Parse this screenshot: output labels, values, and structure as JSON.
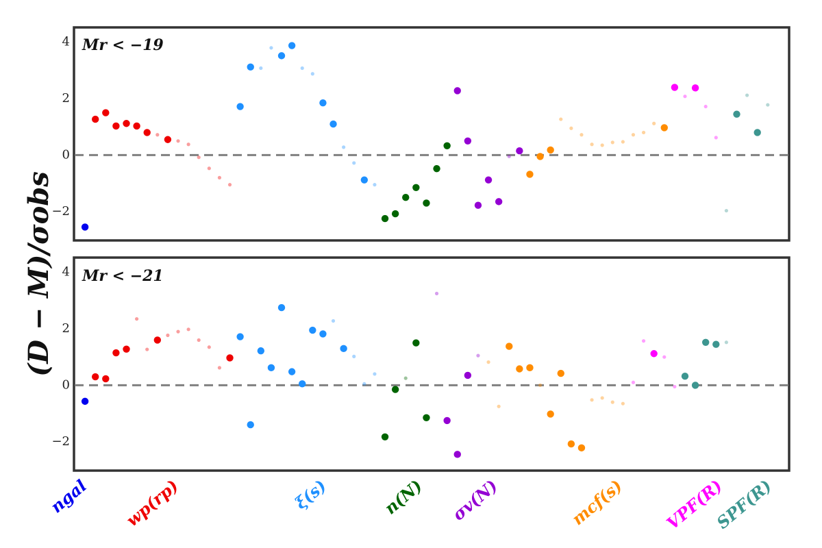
{
  "chart_data": {
    "type": "scatter",
    "ylabel": "(D − M)/σobs",
    "x_index_range": [
      -1,
      68
    ],
    "groups": [
      {
        "name": "ngal",
        "color": "#0000ee"
      },
      {
        "name": "wp(rp)",
        "color": "#ee0000"
      },
      {
        "name": "ξ(s)",
        "color": "#1e90ff"
      },
      {
        "name": "n(N)",
        "color": "#006400"
      },
      {
        "name": "σv(N)",
        "color": "#9400d3"
      },
      {
        "name": "mcf(s)",
        "color": "#ff8c00"
      },
      {
        "name": "VPF(R)",
        "color": "#ff00ff"
      },
      {
        "name": "SPF(R)",
        "color": "#3d9690"
      }
    ],
    "panels": [
      {
        "label": "Mr < −19",
        "ylim": [
          -3,
          4.5
        ],
        "yticks": [
          -2,
          0,
          2,
          4
        ],
        "points": [
          {
            "i": 0,
            "y": -2.55,
            "g": 0,
            "big": true
          },
          {
            "i": 1,
            "y": 1.27,
            "g": 1,
            "big": true
          },
          {
            "i": 2,
            "y": 1.5,
            "g": 1,
            "big": true
          },
          {
            "i": 3,
            "y": 1.03,
            "g": 1,
            "big": true
          },
          {
            "i": 4,
            "y": 1.12,
            "g": 1,
            "big": true
          },
          {
            "i": 5,
            "y": 1.03,
            "g": 1,
            "big": true
          },
          {
            "i": 6,
            "y": 0.8,
            "g": 1,
            "big": true
          },
          {
            "i": 7,
            "y": 0.72,
            "g": 1,
            "big": false
          },
          {
            "i": 8,
            "y": 0.55,
            "g": 1,
            "big": true
          },
          {
            "i": 9,
            "y": 0.5,
            "g": 1,
            "big": false
          },
          {
            "i": 10,
            "y": 0.38,
            "g": 1,
            "big": false
          },
          {
            "i": 11,
            "y": -0.08,
            "g": 1,
            "big": false
          },
          {
            "i": 12,
            "y": -0.47,
            "g": 1,
            "big": false
          },
          {
            "i": 13,
            "y": -0.8,
            "g": 1,
            "big": false
          },
          {
            "i": 14,
            "y": -1.05,
            "g": 1,
            "big": false
          },
          {
            "i": 15,
            "y": 1.72,
            "g": 2,
            "big": true
          },
          {
            "i": 16,
            "y": 3.12,
            "g": 2,
            "big": true
          },
          {
            "i": 17,
            "y": 3.08,
            "g": 2,
            "big": false
          },
          {
            "i": 18,
            "y": 3.8,
            "g": 2,
            "big": false
          },
          {
            "i": 19,
            "y": 3.52,
            "g": 2,
            "big": true
          },
          {
            "i": 20,
            "y": 3.88,
            "g": 2,
            "big": true
          },
          {
            "i": 21,
            "y": 3.08,
            "g": 2,
            "big": false
          },
          {
            "i": 22,
            "y": 2.88,
            "g": 2,
            "big": false
          },
          {
            "i": 23,
            "y": 1.85,
            "g": 2,
            "big": true
          },
          {
            "i": 24,
            "y": 1.1,
            "g": 2,
            "big": true
          },
          {
            "i": 25,
            "y": 0.28,
            "g": 2,
            "big": false
          },
          {
            "i": 26,
            "y": -0.28,
            "g": 2,
            "big": false
          },
          {
            "i": 27,
            "y": -0.88,
            "g": 2,
            "big": true
          },
          {
            "i": 28,
            "y": -1.05,
            "g": 2,
            "big": false
          },
          {
            "i": 29,
            "y": -2.25,
            "g": 3,
            "big": true
          },
          {
            "i": 30,
            "y": -2.08,
            "g": 3,
            "big": true
          },
          {
            "i": 31,
            "y": -1.5,
            "g": 3,
            "big": true
          },
          {
            "i": 32,
            "y": -1.15,
            "g": 3,
            "big": true
          },
          {
            "i": 33,
            "y": -1.7,
            "g": 3,
            "big": true
          },
          {
            "i": 34,
            "y": -0.48,
            "g": 3,
            "big": true
          },
          {
            "i": 35,
            "y": 0.33,
            "g": 3,
            "big": true
          },
          {
            "i": 36,
            "y": 2.28,
            "g": 4,
            "big": true
          },
          {
            "i": 37,
            "y": 0.5,
            "g": 4,
            "big": true
          },
          {
            "i": 38,
            "y": -1.78,
            "g": 4,
            "big": true
          },
          {
            "i": 39,
            "y": -0.88,
            "g": 4,
            "big": true
          },
          {
            "i": 40,
            "y": -1.65,
            "g": 4,
            "big": true
          },
          {
            "i": 41,
            "y": -0.05,
            "g": 4,
            "big": false
          },
          {
            "i": 42,
            "y": 0.15,
            "g": 4,
            "big": true
          },
          {
            "i": 43,
            "y": -0.68,
            "g": 5,
            "big": true
          },
          {
            "i": 44,
            "y": -0.05,
            "g": 5,
            "big": true
          },
          {
            "i": 45,
            "y": 0.18,
            "g": 5,
            "big": true
          },
          {
            "i": 46,
            "y": 1.27,
            "g": 5,
            "big": false
          },
          {
            "i": 47,
            "y": 0.95,
            "g": 5,
            "big": false
          },
          {
            "i": 48,
            "y": 0.72,
            "g": 5,
            "big": false
          },
          {
            "i": 49,
            "y": 0.38,
            "g": 5,
            "big": false
          },
          {
            "i": 50,
            "y": 0.35,
            "g": 5,
            "big": false
          },
          {
            "i": 51,
            "y": 0.45,
            "g": 5,
            "big": false
          },
          {
            "i": 52,
            "y": 0.47,
            "g": 5,
            "big": false
          },
          {
            "i": 53,
            "y": 0.72,
            "g": 5,
            "big": false
          },
          {
            "i": 54,
            "y": 0.8,
            "g": 5,
            "big": false
          },
          {
            "i": 55,
            "y": 1.12,
            "g": 5,
            "big": false
          },
          {
            "i": 56,
            "y": 0.97,
            "g": 5,
            "big": true
          },
          {
            "i": 57,
            "y": 2.4,
            "g": 6,
            "big": true
          },
          {
            "i": 58,
            "y": 2.08,
            "g": 6,
            "big": false
          },
          {
            "i": 59,
            "y": 2.38,
            "g": 6,
            "big": true
          },
          {
            "i": 60,
            "y": 1.72,
            "g": 6,
            "big": false
          },
          {
            "i": 61,
            "y": 0.62,
            "g": 6,
            "big": false
          },
          {
            "i": 62,
            "y": -1.97,
            "g": 7,
            "big": false
          },
          {
            "i": 63,
            "y": 1.45,
            "g": 7,
            "big": true
          },
          {
            "i": 64,
            "y": 2.12,
            "g": 7,
            "big": false
          },
          {
            "i": 65,
            "y": 0.8,
            "g": 7,
            "big": true
          },
          {
            "i": 66,
            "y": 1.78,
            "g": 7,
            "big": false
          }
        ]
      },
      {
        "label": "Mr < −21",
        "ylim": [
          -3,
          4.5
        ],
        "yticks": [
          -2,
          0,
          2,
          4
        ],
        "points": [
          {
            "i": 0,
            "y": -0.57,
            "g": 0,
            "big": true
          },
          {
            "i": 1,
            "y": 0.3,
            "g": 1,
            "big": true
          },
          {
            "i": 2,
            "y": 0.23,
            "g": 1,
            "big": true
          },
          {
            "i": 3,
            "y": 1.15,
            "g": 1,
            "big": true
          },
          {
            "i": 4,
            "y": 1.28,
            "g": 1,
            "big": true
          },
          {
            "i": 5,
            "y": 2.35,
            "g": 1,
            "big": false
          },
          {
            "i": 6,
            "y": 1.27,
            "g": 1,
            "big": false
          },
          {
            "i": 7,
            "y": 1.6,
            "g": 1,
            "big": true
          },
          {
            "i": 8,
            "y": 1.77,
            "g": 1,
            "big": false
          },
          {
            "i": 9,
            "y": 1.9,
            "g": 1,
            "big": false
          },
          {
            "i": 10,
            "y": 1.98,
            "g": 1,
            "big": false
          },
          {
            "i": 11,
            "y": 1.6,
            "g": 1,
            "big": false
          },
          {
            "i": 12,
            "y": 1.35,
            "g": 1,
            "big": false
          },
          {
            "i": 13,
            "y": 0.62,
            "g": 1,
            "big": false
          },
          {
            "i": 14,
            "y": 0.97,
            "g": 1,
            "big": true
          },
          {
            "i": 15,
            "y": 1.72,
            "g": 2,
            "big": true
          },
          {
            "i": 16,
            "y": -1.4,
            "g": 2,
            "big": true
          },
          {
            "i": 17,
            "y": 1.22,
            "g": 2,
            "big": true
          },
          {
            "i": 18,
            "y": 0.62,
            "g": 2,
            "big": true
          },
          {
            "i": 19,
            "y": 2.75,
            "g": 2,
            "big": true
          },
          {
            "i": 20,
            "y": 0.48,
            "g": 2,
            "big": true
          },
          {
            "i": 21,
            "y": 0.05,
            "g": 2,
            "big": true
          },
          {
            "i": 22,
            "y": 1.95,
            "g": 2,
            "big": true
          },
          {
            "i": 23,
            "y": 1.82,
            "g": 2,
            "big": true
          },
          {
            "i": 24,
            "y": 2.28,
            "g": 2,
            "big": false
          },
          {
            "i": 25,
            "y": 1.3,
            "g": 2,
            "big": true
          },
          {
            "i": 26,
            "y": 1.02,
            "g": 2,
            "big": false
          },
          {
            "i": 27,
            "y": 0.05,
            "g": 2,
            "big": false
          },
          {
            "i": 28,
            "y": 0.4,
            "g": 2,
            "big": false
          },
          {
            "i": 29,
            "y": -1.83,
            "g": 3,
            "big": true
          },
          {
            "i": 30,
            "y": -0.15,
            "g": 3,
            "big": true
          },
          {
            "i": 31,
            "y": 0.25,
            "g": 3,
            "big": false
          },
          {
            "i": 32,
            "y": 1.5,
            "g": 3,
            "big": true
          },
          {
            "i": 33,
            "y": -1.15,
            "g": 3,
            "big": true
          },
          {
            "i": 34,
            "y": 3.25,
            "g": 4,
            "big": false
          },
          {
            "i": 35,
            "y": -1.25,
            "g": 4,
            "big": true
          },
          {
            "i": 36,
            "y": -2.45,
            "g": 4,
            "big": true
          },
          {
            "i": 37,
            "y": 0.35,
            "g": 4,
            "big": true
          },
          {
            "i": 38,
            "y": 1.05,
            "g": 4,
            "big": false
          },
          {
            "i": 39,
            "y": 0.82,
            "g": 5,
            "big": false
          },
          {
            "i": 40,
            "y": -0.75,
            "g": 5,
            "big": false
          },
          {
            "i": 41,
            "y": 1.38,
            "g": 5,
            "big": true
          },
          {
            "i": 42,
            "y": 0.58,
            "g": 5,
            "big": true
          },
          {
            "i": 43,
            "y": 0.62,
            "g": 5,
            "big": true
          },
          {
            "i": 44,
            "y": 0.0,
            "g": 5,
            "big": false
          },
          {
            "i": 45,
            "y": -1.02,
            "g": 5,
            "big": true
          },
          {
            "i": 46,
            "y": 0.42,
            "g": 5,
            "big": true
          },
          {
            "i": 47,
            "y": -2.08,
            "g": 5,
            "big": true
          },
          {
            "i": 48,
            "y": -2.22,
            "g": 5,
            "big": true
          },
          {
            "i": 49,
            "y": -0.52,
            "g": 5,
            "big": false
          },
          {
            "i": 50,
            "y": -0.45,
            "g": 5,
            "big": false
          },
          {
            "i": 51,
            "y": -0.6,
            "g": 5,
            "big": false
          },
          {
            "i": 52,
            "y": -0.65,
            "g": 5,
            "big": false
          },
          {
            "i": 53,
            "y": 0.1,
            "g": 6,
            "big": false
          },
          {
            "i": 54,
            "y": 1.57,
            "g": 6,
            "big": false
          },
          {
            "i": 55,
            "y": 1.12,
            "g": 6,
            "big": true
          },
          {
            "i": 56,
            "y": 1.0,
            "g": 6,
            "big": false
          },
          {
            "i": 57,
            "y": -0.05,
            "g": 6,
            "big": false
          },
          {
            "i": 58,
            "y": 0.32,
            "g": 7,
            "big": true
          },
          {
            "i": 59,
            "y": 0.0,
            "g": 7,
            "big": true
          },
          {
            "i": 60,
            "y": 1.52,
            "g": 7,
            "big": true
          },
          {
            "i": 61,
            "y": 1.45,
            "g": 7,
            "big": true
          },
          {
            "i": 62,
            "y": 1.52,
            "g": 7,
            "big": false
          }
        ]
      }
    ]
  }
}
